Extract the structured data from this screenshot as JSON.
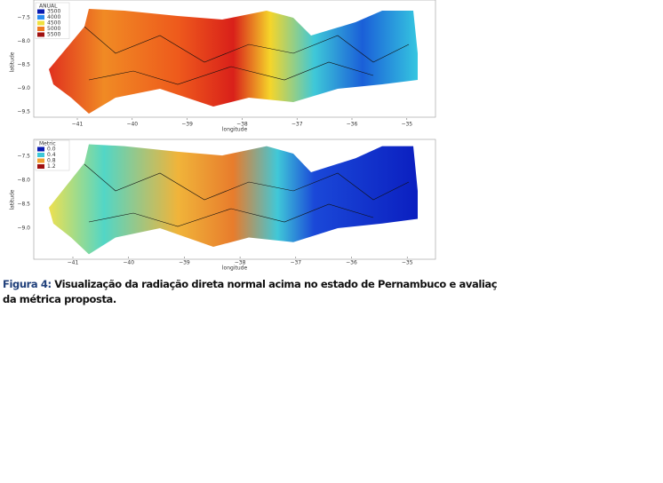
{
  "figures": [
    {
      "legend_title": "ANUAL",
      "legend_labels": [
        "3500",
        "4000",
        "4500",
        "5000",
        "5500"
      ],
      "xticks": [
        "−41",
        "−40",
        "−39",
        "−38",
        "−37",
        "−36",
        "−35"
      ],
      "yticks": [
        "−7.5",
        "−8.0",
        "−8.5",
        "−9.0",
        "−9.5"
      ],
      "xlabel": "longitude",
      "ylabel": "latitude"
    },
    {
      "legend_title": "Metric",
      "legend_labels": [
        "0.0",
        "0.4",
        "0.8",
        "1.2"
      ],
      "xticks": [
        "−41",
        "−40",
        "−39",
        "−38",
        "−37",
        "−36",
        "−35"
      ],
      "yticks": [
        "−7.5",
        "−8.0",
        "−8.5",
        "−9.0"
      ],
      "xlabel": "longitude",
      "ylabel": "latitude"
    }
  ],
  "caption": {
    "label": "Figura 4:",
    "lines": [
      "Visualização da radiação direta normal acima no estado de Pernambuco e avaliaç",
      "da métrica proposta."
    ]
  }
}
